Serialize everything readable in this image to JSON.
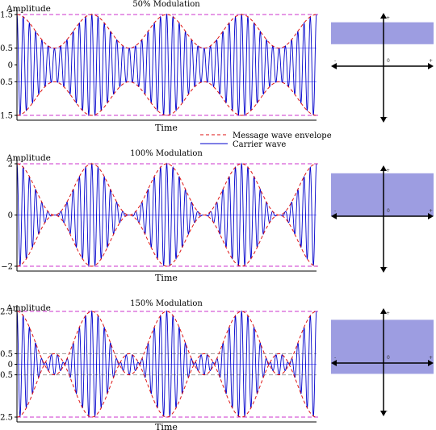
{
  "colors": {
    "carrier": "#0000cc",
    "envelope": "#dd1111",
    "ref_line": "#cc33cc",
    "mid_line": "#8888ff",
    "grey_line": "#999999",
    "phasor_fill": "#8c8cdc"
  },
  "legend": {
    "envelope_label": "Message wave envelope",
    "carrier_label": "Carrier wave"
  },
  "chart_data": [
    {
      "type": "line",
      "title": "50% Modulation",
      "ylabel": "Amplitude",
      "xlabel": "Time",
      "modulation_index": 0.5,
      "ylim": [
        -1.6,
        1.6
      ],
      "yticks": [
        -1.5,
        -0.5,
        0,
        0.5,
        1.5
      ],
      "ytick_labels": [
        "−1.5",
        "−0.5",
        "0",
        "0.5",
        "1.5"
      ],
      "ref_lines": [
        1.5,
        -1.5
      ],
      "mid_lines": [
        0.5,
        -0.5
      ],
      "grey_lines": [],
      "envelope_cycles": 4,
      "carrier_cycles_per_envelope": 12,
      "envelope_max": 1.5,
      "envelope_min": 0.5,
      "phasor": {
        "fill_top": 1.0,
        "fill_bottom": 0.5,
        "left_label": "-",
        "center_label": "0",
        "right_label": "+",
        "top_label": "+",
        "bottom_label": "-"
      }
    },
    {
      "type": "line",
      "title": "100% Modulation",
      "ylabel": "Amplitude",
      "xlabel": "Time",
      "modulation_index": 1.0,
      "ylim": [
        -2.1,
        2.1
      ],
      "yticks": [
        -2,
        0,
        2
      ],
      "ytick_labels": [
        "−2",
        "0",
        "2"
      ],
      "ref_lines": [
        2,
        -2
      ],
      "mid_lines": [
        0
      ],
      "grey_lines": [],
      "envelope_cycles": 4,
      "carrier_cycles_per_envelope": 12,
      "envelope_max": 2,
      "envelope_min": 0,
      "phasor": {
        "fill_top": 1.0,
        "fill_bottom": 0.0,
        "left_label": "-",
        "center_label": "0",
        "right_label": "+",
        "top_label": "+",
        "bottom_label": "-"
      }
    },
    {
      "type": "line",
      "title": "150% Modulation",
      "ylabel": "Amplitude",
      "xlabel": "Time",
      "modulation_index": 1.5,
      "ylim": [
        -2.65,
        2.65
      ],
      "yticks": [
        -2.5,
        -0.5,
        0,
        0.5,
        2.5
      ],
      "ytick_labels": [
        "−2.5",
        "−0.5",
        "0",
        "0.5",
        "2.5"
      ],
      "ref_lines": [
        2.5,
        -2.5
      ],
      "mid_lines": [
        0
      ],
      "grey_lines": [
        0.5,
        -0.5
      ],
      "envelope_cycles": 4,
      "carrier_cycles_per_envelope": 12,
      "envelope_max": 2.5,
      "envelope_min": -0.5,
      "phasor": {
        "fill_top": 1.0,
        "fill_bottom": -0.25,
        "left_label": "-",
        "center_label": "0",
        "right_label": "+",
        "top_label": "+",
        "bottom_label": "-"
      }
    }
  ]
}
